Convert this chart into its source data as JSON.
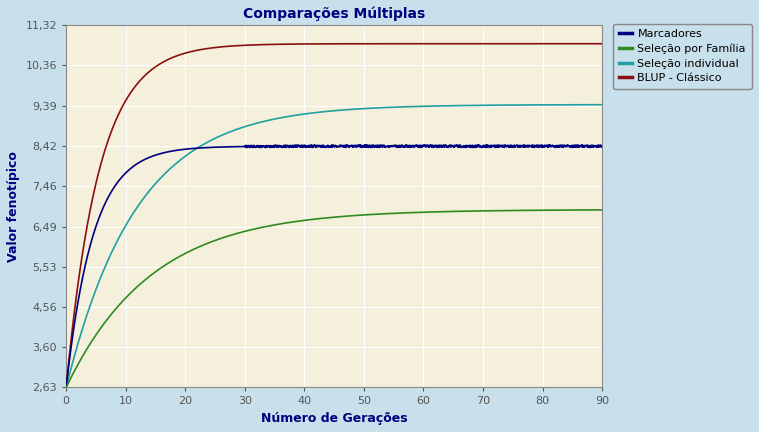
{
  "title": "Comparações Múltiplas",
  "xlabel": "Número de Gerações",
  "ylabel": "Valor fenotípico",
  "xlim": [
    0,
    90
  ],
  "ylim": [
    2.63,
    11.32
  ],
  "xticks": [
    0,
    10,
    20,
    30,
    40,
    50,
    60,
    70,
    80,
    90
  ],
  "yticks": [
    2.63,
    3.6,
    4.56,
    5.53,
    6.49,
    7.46,
    8.42,
    9.39,
    10.36,
    11.32
  ],
  "plot_bg_color": "#F5F0DC",
  "fig_bg_color": "#C8E0EC",
  "grid_color": "#FFFFFF",
  "title_color": "#000080",
  "axis_label_color": "#000080",
  "tick_label_color": "#000000",
  "legend": [
    {
      "label": "Marcadores",
      "color": "#000080"
    },
    {
      "label": "Seleção por Família",
      "color": "#2E8B20"
    },
    {
      "label": "Seleção individual",
      "color": "#20A0A0"
    },
    {
      "label": "BLUP - Clássico",
      "color": "#8B1010"
    }
  ],
  "start_value": 2.63,
  "marcadores_end": 8.42,
  "marcadores_rate": 0.22,
  "familia_end": 6.9,
  "familia_rate": 0.07,
  "individual_end": 9.42,
  "individual_rate": 0.085,
  "blup_end": 10.88,
  "blup_rate": 0.18
}
